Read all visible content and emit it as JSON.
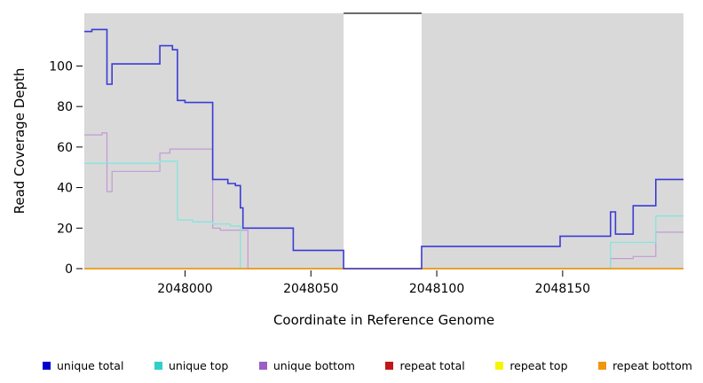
{
  "figure": {
    "xlabel": "Coordinate in Reference Genome",
    "ylabel": "Read Coverage Depth"
  },
  "chart_data": {
    "type": "line",
    "step": "after",
    "title": "",
    "xlabel": "Coordinate in Reference Genome",
    "ylabel": "Read Coverage Depth",
    "xlim": [
      2047960,
      2048198
    ],
    "ylim": [
      0,
      126
    ],
    "xticks": [
      2048000,
      2048050,
      2048100,
      2048150
    ],
    "yticks": [
      0,
      20,
      40,
      60,
      80,
      100
    ],
    "grid": false,
    "plot_background": "#d9d9d9",
    "gap_band": {
      "x_start": 2048063,
      "x_end": 2048094,
      "color": "#ffffff",
      "top_border_color": "#3a3a3a"
    },
    "series": [
      {
        "name": "unique bottom",
        "color": "#c39ad3",
        "width": 1.2,
        "points": [
          [
            2047960,
            66
          ],
          [
            2047967,
            67
          ],
          [
            2047969,
            38
          ],
          [
            2047971,
            48
          ],
          [
            2047990,
            57
          ],
          [
            2047994,
            59
          ],
          [
            2048011,
            20
          ],
          [
            2048014,
            19
          ],
          [
            2048025,
            0
          ],
          [
            2048169,
            5
          ],
          [
            2048178,
            6
          ],
          [
            2048187,
            18
          ],
          [
            2048198,
            18
          ]
        ]
      },
      {
        "name": "unique top",
        "color": "#7fe6de",
        "width": 1.2,
        "points": [
          [
            2047960,
            52
          ],
          [
            2047990,
            53
          ],
          [
            2047997,
            24
          ],
          [
            2048003,
            23
          ],
          [
            2048011,
            22
          ],
          [
            2048018,
            21
          ],
          [
            2048022,
            0
          ],
          [
            2048169,
            13
          ],
          [
            2048187,
            26
          ],
          [
            2048198,
            26
          ]
        ]
      },
      {
        "name": "repeat total",
        "color": "#c01818",
        "width": 1.2,
        "points": [
          [
            2047960,
            0
          ],
          [
            2048198,
            0
          ]
        ]
      },
      {
        "name": "repeat top",
        "color": "#f5f500",
        "width": 1.2,
        "points": [
          [
            2047960,
            0
          ],
          [
            2048198,
            0
          ]
        ]
      },
      {
        "name": "repeat bottom",
        "color": "#f0960f",
        "width": 1.4,
        "points": [
          [
            2047960,
            0
          ],
          [
            2048198,
            0
          ]
        ]
      },
      {
        "name": "unique total",
        "color": "#3b3bd6",
        "width": 1.6,
        "points": [
          [
            2047960,
            117
          ],
          [
            2047963,
            118
          ],
          [
            2047969,
            91
          ],
          [
            2047971,
            101
          ],
          [
            2047990,
            110
          ],
          [
            2047995,
            108
          ],
          [
            2047997,
            83
          ],
          [
            2048000,
            82
          ],
          [
            2048011,
            44
          ],
          [
            2048017,
            42
          ],
          [
            2048020,
            41
          ],
          [
            2048022,
            30
          ],
          [
            2048023,
            20
          ],
          [
            2048043,
            9
          ],
          [
            2048063,
            0
          ],
          [
            2048094,
            11
          ],
          [
            2048149,
            16
          ],
          [
            2048169,
            28
          ],
          [
            2048171,
            17
          ],
          [
            2048178,
            31
          ],
          [
            2048187,
            44
          ],
          [
            2048198,
            44
          ]
        ]
      }
    ],
    "legend": [
      {
        "label": "unique total",
        "color": "#0000cd"
      },
      {
        "label": "unique top",
        "color": "#30d0c8"
      },
      {
        "label": "unique bottom",
        "color": "#9a5fc6"
      },
      {
        "label": "repeat total",
        "color": "#c01818"
      },
      {
        "label": "repeat top",
        "color": "#f5f500"
      },
      {
        "label": "repeat bottom",
        "color": "#f0960f"
      }
    ]
  }
}
